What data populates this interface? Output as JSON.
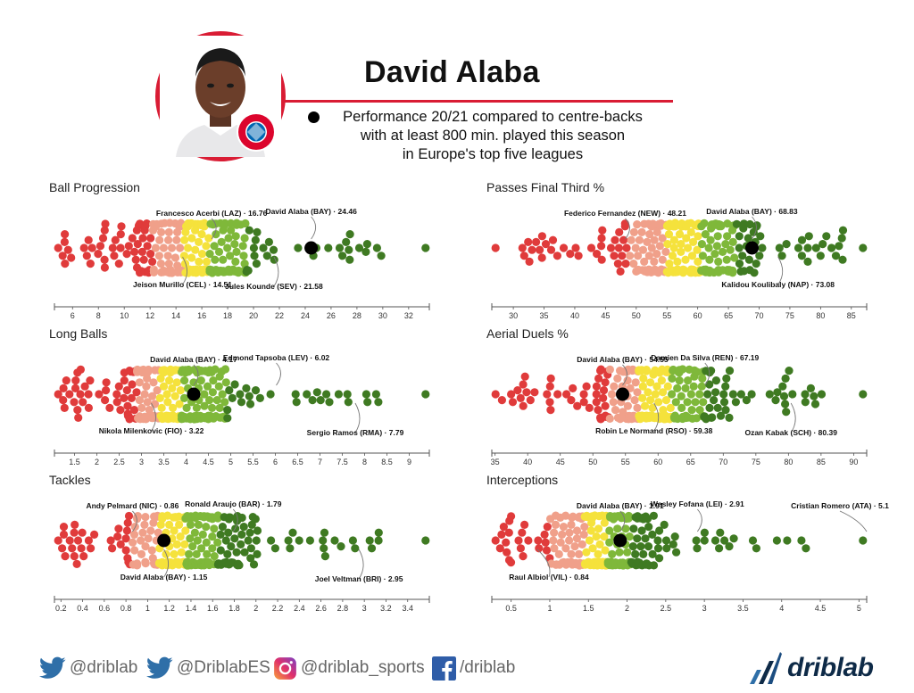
{
  "header": {
    "title": "David Alaba",
    "subtitle_lines": [
      "Performance 20/21 compared to centre-backs",
      "with at least 800 min. played this season",
      "in Europe's top five leagues"
    ],
    "crest_text": "FC BAYERN MÜNCHEN",
    "accent_color": "#d91c34"
  },
  "colors": {
    "bins": [
      "#e03b3b",
      "#f0a08a",
      "#f5e23c",
      "#7fb83a",
      "#3f7a22"
    ],
    "axis": "#555555",
    "highlight": "#000000"
  },
  "chart_data": [
    {
      "type": "scatter",
      "title": "Ball Progression",
      "xlim": [
        4.6,
        33.6
      ],
      "ticks": [
        6,
        8,
        10,
        12,
        14,
        16,
        18,
        20,
        22,
        24,
        26,
        28,
        30,
        32
      ],
      "tick_labels": [
        "6",
        "8",
        "10",
        "12",
        "14",
        "16",
        "18",
        "20",
        "22",
        "24",
        "26",
        "28",
        "30",
        "32"
      ],
      "breaks": [
        12.2,
        14.6,
        16.6,
        19.4
      ],
      "core": [
        8,
        23
      ],
      "highlight": 24.46,
      "annotations": [
        {
          "label": "Francesco Acerbi (LAZ) · 16.76",
          "value": 16.76,
          "side": "top"
        },
        {
          "label": "David Alaba (BAY) · 24.46",
          "value": 24.46,
          "side": "top"
        },
        {
          "label": "Jeison Murillo (CEL) · 14.51",
          "value": 14.51,
          "side": "bottom"
        },
        {
          "label": "Jules Kounde (SEV) · 21.58",
          "value": 21.58,
          "side": "bottom"
        }
      ]
    },
    {
      "type": "scatter",
      "title": "Passes Final Third %",
      "xlim": [
        26.5,
        87.5
      ],
      "ticks": [
        30,
        35,
        40,
        45,
        50,
        55,
        60,
        65,
        70,
        75,
        80,
        85
      ],
      "tick_labels": [
        "30",
        "35",
        "40",
        "45",
        "50",
        "55",
        "60",
        "65",
        "70",
        "75",
        "80",
        "85"
      ],
      "breaks": [
        48.5,
        55,
        60.5,
        66
      ],
      "core": [
        40,
        76
      ],
      "highlight": 68.83,
      "annotations": [
        {
          "label": "Federico Fernandez (NEW) · 48.21",
          "value": 48.21,
          "side": "top"
        },
        {
          "label": "David Alaba (BAY) · 68.83",
          "value": 68.83,
          "side": "top"
        },
        {
          "label": "Kalidou Koulibaly (NAP) · 73.08",
          "value": 73.08,
          "side": "bottom"
        }
      ]
    },
    {
      "type": "scatter",
      "title": "Long Balls",
      "xlim": [
        1.05,
        9.45
      ],
      "ticks": [
        1.5,
        2,
        2.5,
        3,
        3.5,
        4,
        4.5,
        5,
        5.5,
        6,
        6.5,
        7,
        7.5,
        8,
        8.5,
        9
      ],
      "tick_labels": [
        "1.5",
        "2",
        "2.5",
        "3",
        "3.5",
        "4",
        "4.5",
        "5",
        "5.5",
        "6",
        "6.5",
        "7",
        "7.5",
        "8",
        "8.5",
        "9"
      ],
      "breaks": [
        2.9,
        3.4,
        3.9,
        4.9
      ],
      "core": [
        1.7,
        5.8
      ],
      "highlight": 4.17,
      "annotations": [
        {
          "label": "David Alaba (BAY) · 4.17",
          "value": 4.17,
          "side": "top"
        },
        {
          "label": "Edmond Tapsoba (LEV) · 6.02",
          "value": 6.02,
          "side": "top"
        },
        {
          "label": "Nikola Milenkovic (FIO) · 3.22",
          "value": 3.22,
          "side": "bottom"
        },
        {
          "label": "Sergio Ramos (RMA) · 7.79",
          "value": 7.79,
          "side": "bottom"
        }
      ]
    },
    {
      "type": "scatter",
      "title": "Aerial Duels %",
      "xlim": [
        34.5,
        92.0
      ],
      "ticks": [
        35,
        40,
        45,
        50,
        55,
        60,
        65,
        70,
        75,
        80,
        85,
        90
      ],
      "tick_labels": [
        "35",
        "40",
        "45",
        "50",
        "55",
        "60",
        "65",
        "70",
        "75",
        "80",
        "85",
        "90"
      ],
      "breaks": [
        52.5,
        57,
        62,
        67
      ],
      "core": [
        44,
        76
      ],
      "highlight": 54.55,
      "annotations": [
        {
          "label": "David Alaba (BAY) · 54.55",
          "value": 54.55,
          "side": "top"
        },
        {
          "label": "Damien Da Silva (REN) · 67.19",
          "value": 67.19,
          "side": "top"
        },
        {
          "label": "Robin Le Normand (RSO) · 59.38",
          "value": 59.38,
          "side": "bottom"
        },
        {
          "label": "Ozan Kabak (SCH) · 80.39",
          "value": 80.39,
          "side": "bottom"
        }
      ]
    },
    {
      "type": "scatter",
      "title": "Tackles",
      "xlim": [
        0.14,
        3.6
      ],
      "ticks": [
        0.2,
        0.4,
        0.6,
        0.8,
        1,
        1.2,
        1.4,
        1.6,
        1.8,
        2,
        2.2,
        2.4,
        2.6,
        2.8,
        3,
        3.2,
        3.4
      ],
      "tick_labels": [
        "0.2",
        "0.4",
        "0.6",
        "0.8",
        "1",
        "1.2",
        "1.4",
        "1.6",
        "1.8",
        "2",
        "2.2",
        "2.4",
        "2.6",
        "2.8",
        "3",
        "3.2",
        "3.4"
      ],
      "breaks": [
        0.85,
        1.1,
        1.35,
        1.65
      ],
      "core": [
        0.45,
        2.3
      ],
      "highlight": 1.15,
      "annotations": [
        {
          "label": "Andy Pelmard (NIC) · 0.86",
          "value": 0.86,
          "side": "top"
        },
        {
          "label": "Ronald Araujo (BAR) · 1.79",
          "value": 1.79,
          "side": "top"
        },
        {
          "label": "David Alaba (BAY) · 1.15",
          "value": 1.15,
          "side": "bottom"
        },
        {
          "label": "Joel Veltman (BRI) · 2.95",
          "value": 2.95,
          "side": "bottom"
        }
      ]
    },
    {
      "type": "scatter",
      "title": "Interceptions",
      "xlim": [
        0.25,
        5.1
      ],
      "ticks": [
        0.5,
        1,
        1.5,
        2,
        2.5,
        3,
        3.5,
        4,
        4.5,
        5
      ],
      "tick_labels": [
        "0.5",
        "1",
        "1.5",
        "2",
        "2.5",
        "3",
        "3.5",
        "4",
        "4.5",
        "5"
      ],
      "breaks": [
        1.0,
        1.45,
        1.75,
        2.05
      ],
      "core": [
        0.65,
        2.8
      ],
      "highlight": 1.91,
      "annotations": [
        {
          "label": "David Alaba (BAY) · 1.91",
          "value": 1.91,
          "side": "top"
        },
        {
          "label": "Wesley Fofana (LEI) · 2.91",
          "value": 2.91,
          "side": "top"
        },
        {
          "label": "Cristian Romero (ATA) · 5.1",
          "value": 5.1,
          "side": "top"
        },
        {
          "label": "Raul Albiol (VIL) · 0.84",
          "value": 0.84,
          "side": "bottom"
        }
      ]
    }
  ],
  "footer": {
    "social": [
      {
        "icon": "twitter-icon",
        "label": "@driblab"
      },
      {
        "icon": "twitter-icon",
        "label": "@DriblabES"
      },
      {
        "icon": "instagram-icon",
        "label": "@driblab_sports"
      },
      {
        "icon": "facebook-icon",
        "label": "/driblab"
      }
    ],
    "brand": "driblab"
  }
}
